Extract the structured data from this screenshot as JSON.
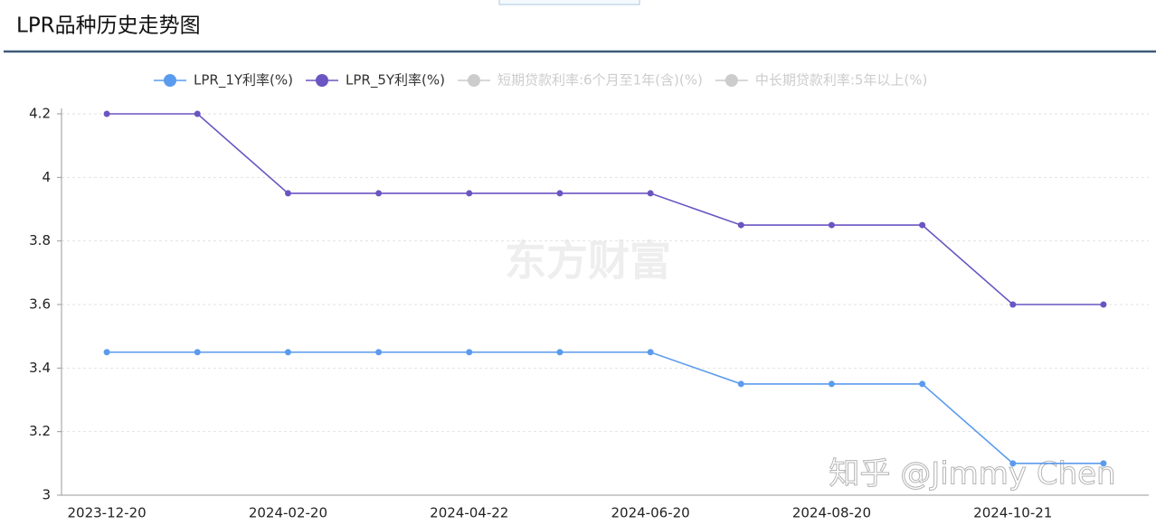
{
  "chart_data": {
    "type": "line",
    "title": "LPR品种历史走势图",
    "categories": [
      "2023-12-20",
      null,
      "2024-02-20",
      null,
      "2024-04-22",
      null,
      "2024-06-20",
      null,
      "2024-08-20",
      null,
      "2024-10-21",
      null
    ],
    "series": [
      {
        "name": "LPR_1Y利率(%)",
        "color": "#5b9bee",
        "values": [
          3.45,
          3.45,
          3.45,
          3.45,
          3.45,
          3.45,
          3.45,
          3.35,
          3.35,
          3.35,
          3.1,
          3.1
        ]
      },
      {
        "name": "LPR_5Y利率(%)",
        "color": "#6a55c2",
        "values": [
          4.2,
          4.2,
          3.95,
          3.95,
          3.95,
          3.95,
          3.95,
          3.85,
          3.85,
          3.85,
          3.6,
          3.6
        ]
      }
    ],
    "inactive_legend": [
      "短期贷款利率:6个月至1年(含)(%)",
      "中长期贷款利率:5年以上(%)"
    ],
    "inactive_color": "#cccccc",
    "ylim": [
      3,
      4.2
    ],
    "yticks": [
      3,
      3.2,
      3.4,
      3.6,
      3.8,
      4,
      4.2
    ],
    "grid": true,
    "watermarks": [
      "东方财富",
      "知乎 @Jimmy Chen"
    ]
  }
}
